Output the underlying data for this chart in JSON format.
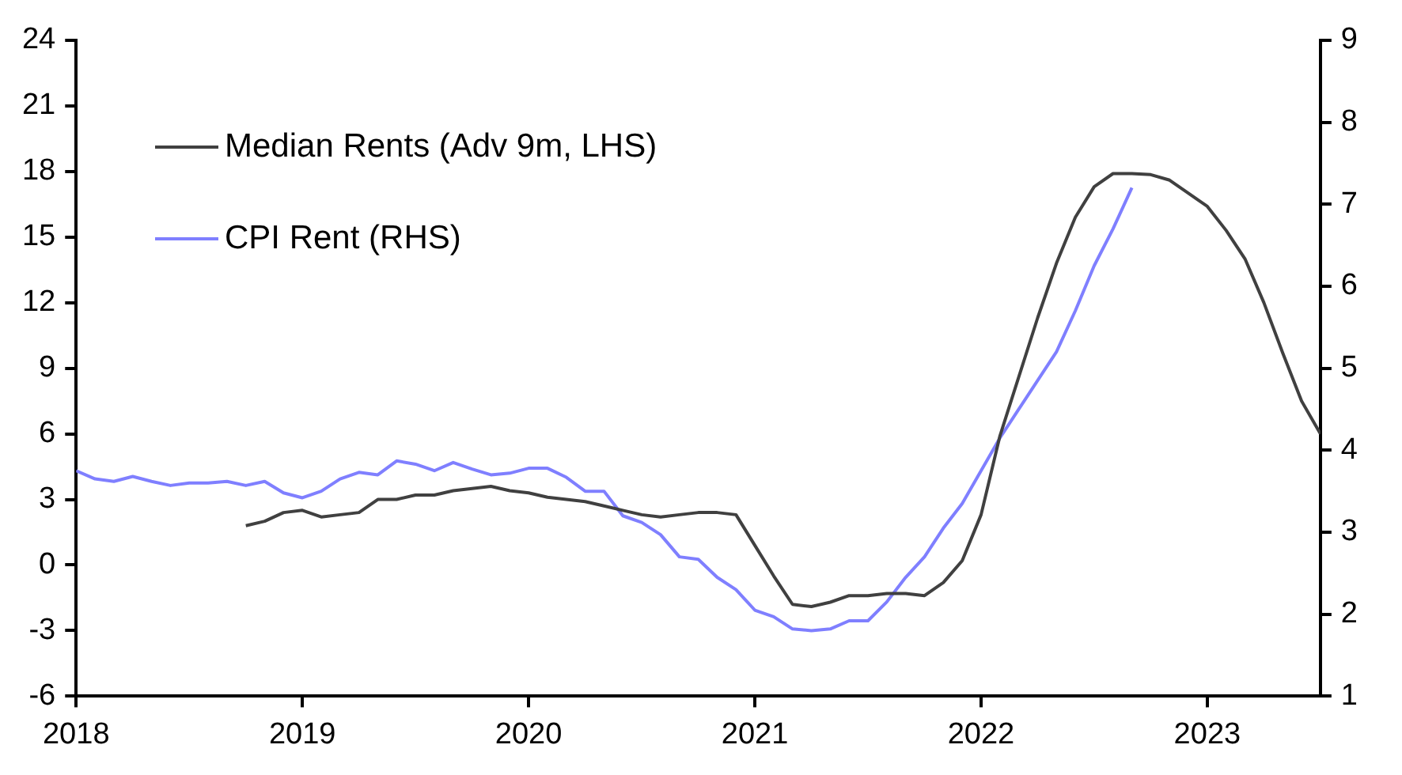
{
  "chart_data": {
    "type": "line",
    "xlim": [
      "2018-01",
      "2023-07"
    ],
    "xticks": [
      "2018",
      "2019",
      "2020",
      "2021",
      "2022",
      "2023"
    ],
    "ylim": [
      -6,
      24
    ],
    "yticks": [
      -6,
      -3,
      0,
      3,
      6,
      9,
      12,
      15,
      18,
      21,
      24
    ],
    "y2lim": [
      1,
      9
    ],
    "y2ticks": [
      1,
      2,
      3,
      4,
      5,
      6,
      7,
      8,
      9
    ],
    "grid": false,
    "legend": "top left",
    "line_style": "solid",
    "marker": "none",
    "series": [
      {
        "name": "Median Rents (Adv 9m, LHS)",
        "color": "#404040",
        "x": [
          "2018-10",
          "2018-11",
          "2018-12",
          "2019-01",
          "2019-02",
          "2019-03",
          "2019-04",
          "2019-05",
          "2019-06",
          "2019-07",
          "2019-08",
          "2019-09",
          "2019-10",
          "2019-11",
          "2019-12",
          "2020-01",
          "2020-02",
          "2020-03",
          "2020-04",
          "2020-05",
          "2020-06",
          "2020-07",
          "2020-08",
          "2020-09",
          "2020-10",
          "2020-11",
          "2020-12",
          "2021-01",
          "2021-02",
          "2021-03",
          "2021-04",
          "2021-05",
          "2021-06",
          "2021-07",
          "2021-08",
          "2021-09",
          "2021-10",
          "2021-11",
          "2021-12",
          "2022-01",
          "2022-02",
          "2022-03",
          "2022-04",
          "2022-05",
          "2022-06",
          "2022-07",
          "2022-08",
          "2022-09",
          "2022-10",
          "2022-11",
          "2022-12",
          "2023-01",
          "2023-02",
          "2023-03",
          "2023-04",
          "2023-05",
          "2023-06",
          "2023-07"
        ],
        "values": [
          1.8,
          2.0,
          2.4,
          2.5,
          2.2,
          2.3,
          2.4,
          3.0,
          3.0,
          3.2,
          3.2,
          3.4,
          3.5,
          3.6,
          3.4,
          3.3,
          3.1,
          3.0,
          2.9,
          2.7,
          2.5,
          2.3,
          2.2,
          2.3,
          2.4,
          2.4,
          2.3,
          0.9,
          -0.5,
          -1.8,
          -1.9,
          -1.7,
          -1.4,
          -1.4,
          -1.3,
          -1.3,
          -1.4,
          -0.8,
          0.2,
          2.3,
          5.9,
          8.6,
          11.3,
          13.8,
          15.9,
          17.3,
          17.9,
          17.9,
          17.85,
          17.6,
          17.0,
          16.4,
          15.3,
          14.0,
          12.0,
          9.7,
          7.5,
          6.0
        ]
      },
      {
        "name": "CPI Rent (RHS)",
        "color": "#7f7fff",
        "axis": "y2",
        "x": [
          "2018-01",
          "2018-02",
          "2018-03",
          "2018-04",
          "2018-05",
          "2018-06",
          "2018-07",
          "2018-08",
          "2018-09",
          "2018-10",
          "2018-11",
          "2018-12",
          "2019-01",
          "2019-02",
          "2019-03",
          "2019-04",
          "2019-05",
          "2019-06",
          "2019-07",
          "2019-08",
          "2019-09",
          "2019-10",
          "2019-11",
          "2019-12",
          "2020-01",
          "2020-02",
          "2020-03",
          "2020-04",
          "2020-05",
          "2020-06",
          "2020-07",
          "2020-08",
          "2020-09",
          "2020-10",
          "2020-11",
          "2020-12",
          "2021-01",
          "2021-02",
          "2021-03",
          "2021-04",
          "2021-05",
          "2021-06",
          "2021-07",
          "2021-08",
          "2021-09",
          "2021-10",
          "2021-11",
          "2021-12",
          "2022-01",
          "2022-02",
          "2022-03",
          "2022-04",
          "2022-05",
          "2022-06",
          "2022-07",
          "2022-08",
          "2022-09"
        ],
        "values": [
          3.75,
          3.65,
          3.62,
          3.68,
          3.62,
          3.57,
          3.6,
          3.6,
          3.62,
          3.57,
          3.62,
          3.48,
          3.42,
          3.5,
          3.65,
          3.73,
          3.7,
          3.87,
          3.83,
          3.75,
          3.85,
          3.77,
          3.7,
          3.72,
          3.78,
          3.78,
          3.67,
          3.5,
          3.5,
          3.2,
          3.12,
          2.97,
          2.7,
          2.67,
          2.45,
          2.3,
          2.05,
          1.97,
          1.82,
          1.8,
          1.82,
          1.92,
          1.92,
          2.15,
          2.45,
          2.7,
          3.05,
          3.35,
          3.75,
          4.15,
          4.5,
          4.85,
          5.2,
          5.7,
          6.25,
          6.7,
          7.2
        ]
      }
    ]
  }
}
